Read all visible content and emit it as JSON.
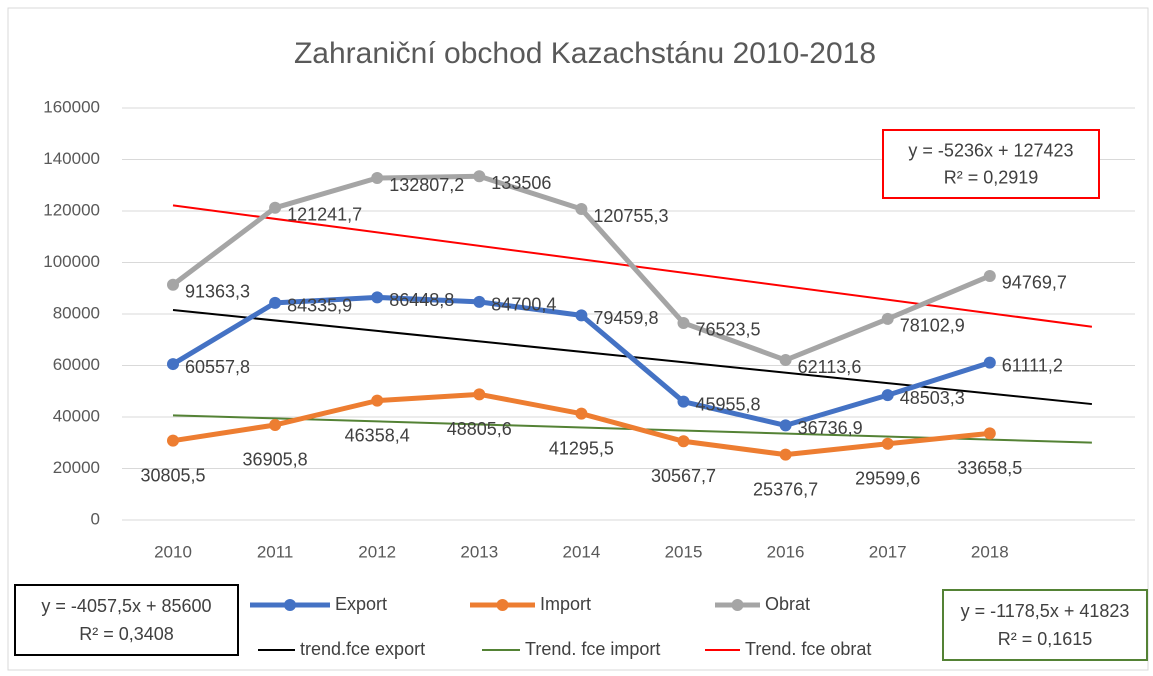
{
  "chart_data": {
    "type": "line",
    "title": "Zahraniční obchod Kazachstánu 2010-2018",
    "categories": [
      "2010",
      "2011",
      "2012",
      "2013",
      "2014",
      "2015",
      "2016",
      "2017",
      "2018"
    ],
    "ylim": [
      0,
      160000
    ],
    "yticks": [
      0,
      20000,
      40000,
      60000,
      80000,
      100000,
      120000,
      140000,
      160000
    ],
    "grid": true,
    "legend": "bottom",
    "series": [
      {
        "name": "Export",
        "color": "#4472c4",
        "values": [
          60557.8,
          84335.9,
          86448.8,
          84700.4,
          79459.8,
          45955.8,
          36736.9,
          48503.3,
          61111.2
        ],
        "value_labels": [
          "60557,8",
          "84335,9",
          "86448,8",
          "84700,4",
          "79459,8",
          "45955,8",
          "36736,9",
          "48503,3",
          "61111,2"
        ]
      },
      {
        "name": "Import",
        "color": "#ed7d31",
        "values": [
          30805.5,
          36905.8,
          46358.4,
          48805.6,
          41295.5,
          30567.7,
          25376.7,
          29599.6,
          33658.5
        ],
        "value_labels": [
          "30805,5",
          "36905,8",
          "46358,4",
          "48805,6",
          "41295,5",
          "30567,7",
          "25376,7",
          "29599,6",
          "33658,5"
        ]
      },
      {
        "name": "Obrat",
        "color": "#a5a5a5",
        "values": [
          91363.3,
          121241.7,
          132807.2,
          133506,
          120755.3,
          76523.5,
          62113.6,
          78102.9,
          94769.7
        ],
        "value_labels": [
          "91363,3",
          "121241,7",
          "132807,2",
          "133506",
          "120755,3",
          "76523,5",
          "62113,6",
          "78102,9",
          "94769,7"
        ]
      }
    ],
    "trendlines": [
      {
        "name": "trend.fce export",
        "color": "#000000",
        "slope": -4057.5,
        "intercept": 85600,
        "forecast_forward": 1,
        "equation": "y = -4057,5x + 85600",
        "r2": "R² = 0,3408"
      },
      {
        "name": "Trend. fce import",
        "color": "#548235",
        "slope": -1178.5,
        "intercept": 41823,
        "forecast_forward": 1,
        "equation": "y = -1178,5x + 41823",
        "r2": "R² = 0,1615"
      },
      {
        "name": "Trend. fce obrat",
        "color": "#ff0000",
        "slope": -5236,
        "intercept": 127423,
        "forecast_forward": 1,
        "equation": "y = -5236x + 127423",
        "r2": "R² = 0,2919"
      }
    ]
  }
}
